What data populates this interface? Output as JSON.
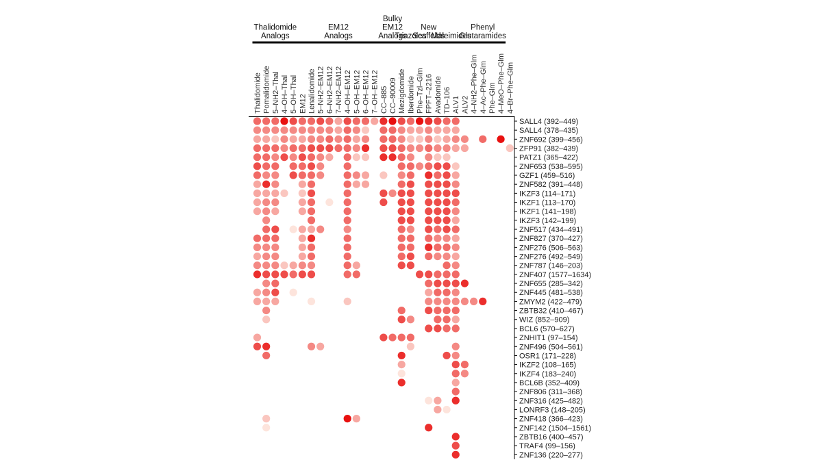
{
  "chart_data": {
    "type": "heatmap",
    "title": "",
    "groups": [
      {
        "label": [
          "Thalidomide",
          "Analogs"
        ],
        "start": 0,
        "end": 4
      },
      {
        "label": [
          "EM12",
          "Analogs"
        ],
        "start": 5,
        "end": 13
      },
      {
        "label": [
          "Bulky",
          "EM12",
          "Analogs"
        ],
        "start": 14,
        "end": 16
      },
      {
        "label": [
          "Triazoles"
        ],
        "start": 17,
        "end": 17
      },
      {
        "label": [
          "New",
          "Scaffolds"
        ],
        "start": 18,
        "end": 20
      },
      {
        "label": [
          "Maleimides"
        ],
        "start": 21,
        "end": 22
      },
      {
        "label": [
          "Phenyl",
          "Glutaramides"
        ],
        "start": 23,
        "end": 27
      }
    ],
    "compounds": [
      "Thalidomide",
      "Pomalidomide",
      "5–NH2–Thal",
      "4–OH–Thal",
      "5–OH–Thal",
      "EM12",
      "Lenalidomide",
      "5–NH2–EM12",
      "6–NH2–EM12",
      "7–NH2–EM12",
      "4–OH–EM12",
      "5–OH–EM12",
      "6–OH–EM12",
      "7–OH–EM12",
      "CC–885",
      "CC–90009",
      "Mezigdomide",
      "Iberdomide",
      "Phe–Tzl–Glm",
      "FPFT–2216",
      "Avadomide",
      "TD–106",
      "ALV1",
      "ALV2",
      "4–NH2–Phe–Glm",
      "4–Ac–Phe–Glm",
      "Phe–Glm",
      "4–MeO–Phe–Glm",
      "4–Br–Phe–Glm"
    ],
    "targets": [
      "SALL4 (392–449)",
      "SALL4 (378–435)",
      "ZNF692 (399–456)",
      "ZFP91 (382–439)",
      "PATZ1 (365–422)",
      "ZNF653 (538–595)",
      "GZF1 (459–516)",
      "ZNF582 (391–448)",
      "IKZF3 (114–171)",
      "IKZF1 (113–170)",
      "IKZF1 (141–198)",
      "IKZF3 (142–199)",
      "ZNF517 (434–491)",
      "ZNF827 (370–427)",
      "ZNF276 (506–563)",
      "ZNF276 (492–549)",
      "ZNF787 (146–203)",
      "ZNF407 (1577–1634)",
      "ZNF655 (285–342)",
      "ZNF445 (481–538)",
      "ZMYM2 (422–479)",
      "ZBTB32 (410–467)",
      "WIZ (852–909)",
      "BCL6 (570–627)",
      "ZNHIT1 (97–154)",
      "ZNF496 (504–561)",
      "OSR1 (171–228)",
      "IKZF2 (108–165)",
      "IKZF4 (183–240)",
      "BCL6B (352–409)",
      "ZNF806 (311–368)",
      "ZNF316 (425–482)",
      "LONRF3 (148–205)",
      "ZNF418 (366–423)",
      "ZNF142 (1504–1561)",
      "ZBTB16 (400–457)",
      "TRAF4 (99–156)",
      "ZNF136 (220–277)"
    ],
    "values": [
      [
        5,
        5,
        5,
        8,
        6,
        5,
        5,
        6,
        5,
        3,
        6,
        5,
        5,
        3,
        7,
        8,
        6,
        5,
        8,
        7,
        6,
        5,
        5,
        0,
        0,
        0,
        0,
        0,
        0
      ],
      [
        4,
        4,
        4,
        4,
        4,
        4,
        4,
        4,
        4,
        3,
        5,
        4,
        2,
        0,
        5,
        5,
        4,
        3,
        3,
        4,
        3,
        3,
        3,
        0,
        0,
        0,
        0,
        0,
        0
      ],
      [
        3,
        3,
        2,
        4,
        3,
        3,
        4,
        4,
        5,
        4,
        5,
        3,
        4,
        0,
        5,
        5,
        4,
        2,
        2,
        4,
        2,
        3,
        4,
        4,
        0,
        5,
        0,
        8,
        0
      ],
      [
        5,
        5,
        5,
        4,
        5,
        5,
        6,
        6,
        6,
        5,
        5,
        4,
        7,
        0,
        6,
        6,
        5,
        4,
        4,
        5,
        4,
        4,
        3,
        3,
        0,
        0,
        0,
        0,
        2
      ],
      [
        5,
        5,
        4,
        6,
        4,
        6,
        5,
        4,
        3,
        0,
        5,
        2,
        2,
        0,
        7,
        7,
        5,
        4,
        0,
        4,
        2,
        2,
        0,
        0,
        0,
        0,
        0,
        0,
        0
      ],
      [
        6,
        5,
        5,
        0,
        5,
        5,
        6,
        4,
        0,
        0,
        5,
        0,
        0,
        0,
        0,
        0,
        5,
        5,
        4,
        5,
        6,
        6,
        2,
        0,
        0,
        0,
        0,
        0,
        0
      ],
      [
        5,
        4,
        4,
        0,
        6,
        5,
        5,
        4,
        0,
        0,
        5,
        4,
        3,
        0,
        2,
        0,
        4,
        5,
        0,
        7,
        5,
        6,
        3,
        0,
        0,
        0,
        0,
        0,
        0
      ],
      [
        3,
        7,
        4,
        0,
        0,
        3,
        5,
        0,
        0,
        0,
        5,
        3,
        3,
        0,
        0,
        0,
        5,
        6,
        0,
        6,
        6,
        6,
        4,
        0,
        0,
        0,
        0,
        0,
        0
      ],
      [
        3,
        3,
        3,
        2,
        0,
        2,
        6,
        0,
        0,
        0,
        5,
        0,
        0,
        0,
        6,
        4,
        6,
        6,
        0,
        6,
        6,
        6,
        6,
        0,
        0,
        0,
        0,
        0,
        0
      ],
      [
        3,
        4,
        4,
        0,
        0,
        3,
        5,
        0,
        1,
        0,
        5,
        0,
        0,
        0,
        6,
        0,
        6,
        6,
        0,
        6,
        6,
        6,
        5,
        0,
        0,
        0,
        0,
        0,
        0
      ],
      [
        3,
        4,
        3,
        0,
        0,
        3,
        5,
        0,
        0,
        0,
        5,
        0,
        0,
        0,
        0,
        0,
        6,
        6,
        0,
        6,
        6,
        6,
        4,
        0,
        0,
        0,
        0,
        0,
        0
      ],
      [
        0,
        4,
        0,
        0,
        0,
        0,
        5,
        0,
        0,
        0,
        5,
        0,
        0,
        0,
        0,
        0,
        6,
        6,
        0,
        6,
        6,
        6,
        3,
        0,
        0,
        0,
        0,
        0,
        0
      ],
      [
        0,
        5,
        6,
        0,
        1,
        3,
        3,
        4,
        0,
        0,
        4,
        0,
        0,
        0,
        0,
        0,
        5,
        4,
        0,
        6,
        5,
        6,
        5,
        0,
        0,
        0,
        0,
        0,
        0
      ],
      [
        5,
        5,
        5,
        0,
        0,
        3,
        7,
        0,
        0,
        0,
        5,
        0,
        0,
        0,
        0,
        0,
        5,
        5,
        0,
        5,
        4,
        4,
        3,
        0,
        0,
        0,
        0,
        0,
        0
      ],
      [
        4,
        4,
        4,
        0,
        0,
        3,
        5,
        0,
        0,
        0,
        5,
        0,
        0,
        0,
        0,
        0,
        5,
        5,
        0,
        7,
        5,
        5,
        4,
        0,
        0,
        0,
        0,
        0,
        0
      ],
      [
        3,
        4,
        4,
        0,
        0,
        3,
        5,
        0,
        0,
        0,
        5,
        0,
        0,
        0,
        0,
        0,
        5,
        6,
        0,
        5,
        4,
        4,
        3,
        0,
        0,
        0,
        0,
        0,
        0
      ],
      [
        4,
        4,
        4,
        2,
        3,
        4,
        4,
        0,
        0,
        0,
        5,
        3,
        0,
        0,
        0,
        0,
        6,
        6,
        0,
        0,
        0,
        5,
        4,
        0,
        0,
        0,
        0,
        0,
        0
      ],
      [
        7,
        6,
        6,
        6,
        5,
        6,
        6,
        0,
        0,
        0,
        5,
        5,
        0,
        0,
        0,
        0,
        0,
        0,
        6,
        6,
        5,
        5,
        5,
        0,
        0,
        0,
        0,
        0,
        0
      ],
      [
        0,
        4,
        5,
        0,
        0,
        0,
        0,
        0,
        0,
        0,
        0,
        0,
        0,
        0,
        0,
        0,
        0,
        0,
        0,
        5,
        6,
        6,
        6,
        7,
        0,
        0,
        0,
        0,
        0
      ],
      [
        3,
        4,
        6,
        0,
        1,
        0,
        0,
        0,
        0,
        0,
        0,
        0,
        0,
        0,
        0,
        0,
        0,
        0,
        0,
        3,
        5,
        5,
        4,
        0,
        0,
        0,
        0,
        0,
        0
      ],
      [
        3,
        3,
        3,
        0,
        0,
        0,
        1,
        0,
        0,
        0,
        2,
        0,
        0,
        0,
        0,
        0,
        0,
        0,
        0,
        4,
        4,
        4,
        4,
        4,
        4,
        7,
        0,
        0,
        0
      ],
      [
        0,
        4,
        0,
        0,
        0,
        0,
        0,
        0,
        0,
        0,
        0,
        0,
        0,
        0,
        0,
        0,
        5,
        0,
        0,
        6,
        5,
        5,
        5,
        0,
        0,
        0,
        0,
        0,
        0
      ],
      [
        0,
        2,
        0,
        0,
        0,
        0,
        0,
        0,
        0,
        0,
        0,
        0,
        0,
        0,
        0,
        0,
        6,
        4,
        0,
        0,
        5,
        5,
        3,
        0,
        0,
        0,
        0,
        0,
        0
      ],
      [
        0,
        0,
        0,
        0,
        0,
        0,
        0,
        0,
        0,
        0,
        0,
        0,
        0,
        0,
        0,
        0,
        0,
        0,
        0,
        6,
        6,
        5,
        5,
        0,
        0,
        0,
        0,
        0,
        0
      ],
      [
        3,
        0,
        0,
        0,
        0,
        0,
        0,
        0,
        0,
        0,
        0,
        0,
        0,
        0,
        6,
        5,
        5,
        5,
        0,
        0,
        0,
        0,
        0,
        0,
        0,
        0,
        0,
        0,
        0
      ],
      [
        6,
        7,
        0,
        0,
        0,
        0,
        4,
        3,
        0,
        0,
        0,
        0,
        0,
        0,
        0,
        0,
        0,
        2,
        0,
        0,
        0,
        0,
        4,
        0,
        0,
        0,
        0,
        0,
        0
      ],
      [
        0,
        5,
        0,
        0,
        0,
        0,
        0,
        0,
        0,
        0,
        0,
        0,
        0,
        0,
        0,
        0,
        7,
        0,
        0,
        0,
        0,
        6,
        4,
        0,
        0,
        0,
        0,
        0,
        0
      ],
      [
        0,
        0,
        0,
        0,
        0,
        0,
        0,
        0,
        0,
        0,
        0,
        0,
        0,
        0,
        0,
        0,
        3,
        0,
        0,
        0,
        0,
        0,
        6,
        5,
        0,
        0,
        0,
        0,
        0
      ],
      [
        0,
        0,
        0,
        0,
        0,
        0,
        0,
        0,
        0,
        0,
        0,
        0,
        0,
        0,
        0,
        0,
        1,
        0,
        0,
        0,
        0,
        0,
        5,
        4,
        0,
        0,
        0,
        0,
        0
      ],
      [
        0,
        0,
        0,
        0,
        0,
        0,
        0,
        0,
        0,
        0,
        0,
        0,
        0,
        0,
        0,
        0,
        7,
        0,
        0,
        0,
        0,
        0,
        3,
        0,
        0,
        0,
        0,
        0,
        0
      ],
      [
        0,
        0,
        0,
        0,
        0,
        0,
        0,
        0,
        0,
        0,
        0,
        0,
        0,
        0,
        0,
        0,
        0,
        0,
        0,
        0,
        0,
        0,
        5,
        0,
        0,
        0,
        0,
        0,
        0
      ],
      [
        0,
        0,
        0,
        0,
        0,
        0,
        0,
        0,
        0,
        0,
        0,
        0,
        0,
        0,
        0,
        0,
        0,
        0,
        0,
        1,
        3,
        0,
        7,
        0,
        0,
        0,
        0,
        0,
        0
      ],
      [
        0,
        0,
        0,
        0,
        0,
        0,
        0,
        0,
        0,
        0,
        0,
        0,
        0,
        0,
        0,
        0,
        0,
        0,
        0,
        0,
        3,
        1,
        0,
        0,
        0,
        0,
        0,
        0,
        0
      ],
      [
        0,
        2,
        0,
        0,
        0,
        0,
        0,
        0,
        0,
        0,
        8,
        3,
        0,
        0,
        0,
        0,
        0,
        0,
        0,
        0,
        0,
        0,
        0,
        0,
        0,
        0,
        0,
        0,
        0
      ],
      [
        0,
        1,
        0,
        0,
        0,
        0,
        0,
        0,
        0,
        0,
        0,
        0,
        0,
        0,
        0,
        0,
        0,
        0,
        0,
        7,
        0,
        0,
        0,
        0,
        0,
        0,
        0,
        0,
        0
      ],
      [
        0,
        0,
        0,
        0,
        0,
        0,
        0,
        0,
        0,
        0,
        0,
        0,
        0,
        0,
        0,
        0,
        0,
        0,
        0,
        0,
        0,
        0,
        7,
        0,
        0,
        0,
        0,
        0,
        0
      ],
      [
        0,
        0,
        0,
        0,
        0,
        0,
        0,
        0,
        0,
        0,
        0,
        0,
        0,
        0,
        0,
        0,
        0,
        0,
        0,
        0,
        0,
        0,
        6,
        0,
        0,
        0,
        0,
        0,
        0
      ],
      [
        0,
        0,
        0,
        0,
        0,
        0,
        0,
        0,
        0,
        0,
        0,
        0,
        0,
        0,
        0,
        0,
        0,
        0,
        0,
        0,
        0,
        0,
        7,
        0,
        0,
        0,
        0,
        0,
        0
      ]
    ],
    "value_scale": [
      0,
      8
    ],
    "colors": {
      "low": "#fde4dc",
      "high": "#e8100f",
      "axis": "#000000"
    }
  }
}
